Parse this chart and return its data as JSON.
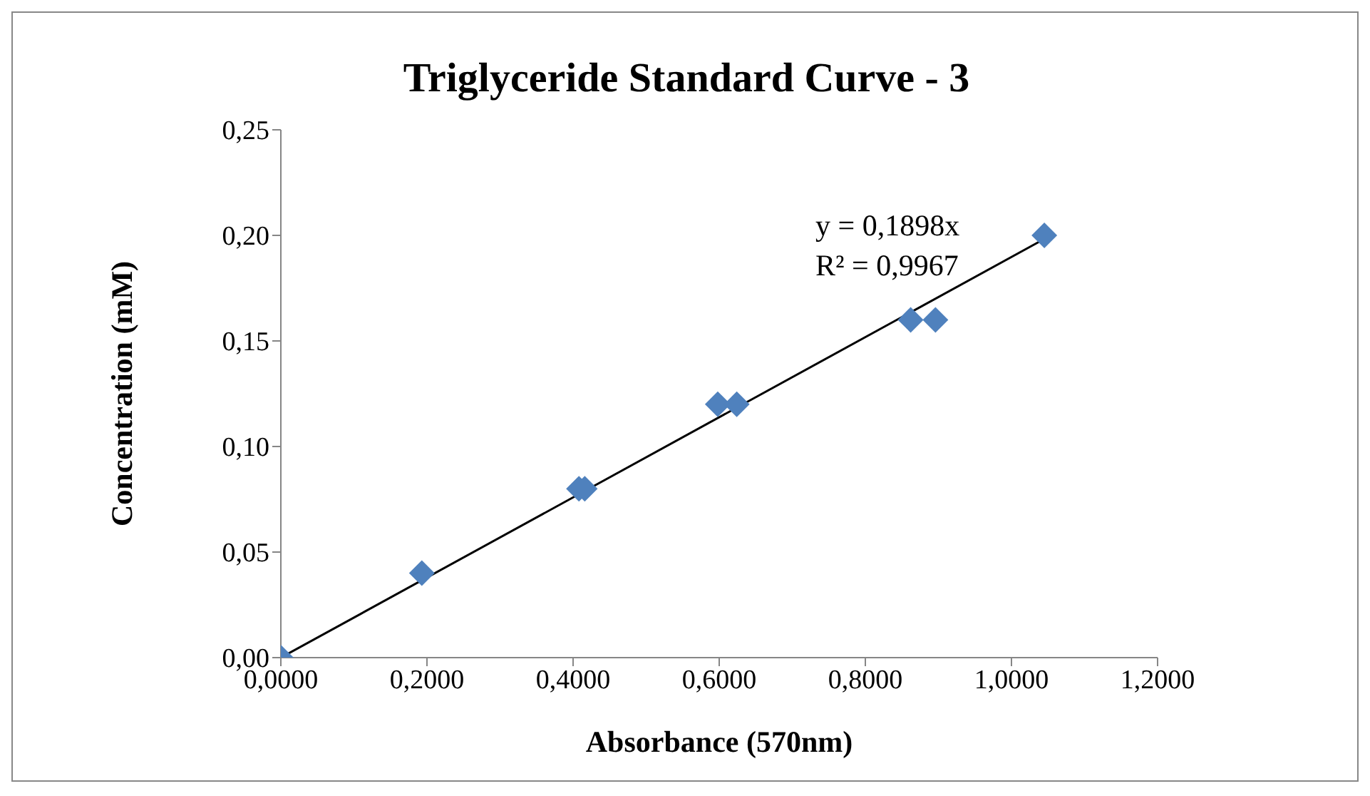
{
  "chart_data": {
    "type": "scatter",
    "title": "Triglyceride Standard Curve - 3",
    "xlabel": "Absorbance (570nm)",
    "ylabel": "Concentration (mM)",
    "annotations": [
      "y = 0,1898x",
      "R² = 0,9967"
    ],
    "series": [
      {
        "marker": "diamond",
        "color": "#4f81bd",
        "x": [
          0,
          0.193,
          0.408,
          0.416,
          0.598,
          0.624,
          0.862,
          0.896,
          1.045
        ],
        "values": [
          0,
          0.04,
          0.08,
          0.08,
          0.12,
          0.12,
          0.16,
          0.16,
          0.2
        ]
      },
      {
        "type": "line",
        "color": "#000000",
        "x": [
          0,
          1.045
        ],
        "values": [
          0,
          0.1983
        ]
      }
    ],
    "grid": false,
    "xlim": [
      0,
      1.2
    ],
    "xticks": [
      {
        "value": 0,
        "label": "0,0000"
      },
      {
        "value": 0.2,
        "label": "0,2000"
      },
      {
        "value": 0.4,
        "label": "0,4000"
      },
      {
        "value": 0.6,
        "label": "0,6000"
      },
      {
        "value": 0.8,
        "label": "0,8000"
      },
      {
        "value": 1,
        "label": "1,0000"
      },
      {
        "value": 1.2,
        "label": "1,2000"
      }
    ],
    "ylim": [
      0,
      0.25
    ],
    "yticks": [
      {
        "value": 0,
        "label": "0,00"
      },
      {
        "value": 0.05,
        "label": "0,05"
      },
      {
        "value": 0.1,
        "label": "0,10"
      },
      {
        "value": 0.15,
        "label": "0,15"
      },
      {
        "value": 0.2,
        "label": "0,20"
      },
      {
        "value": 0.25,
        "label": "0,25"
      }
    ]
  }
}
